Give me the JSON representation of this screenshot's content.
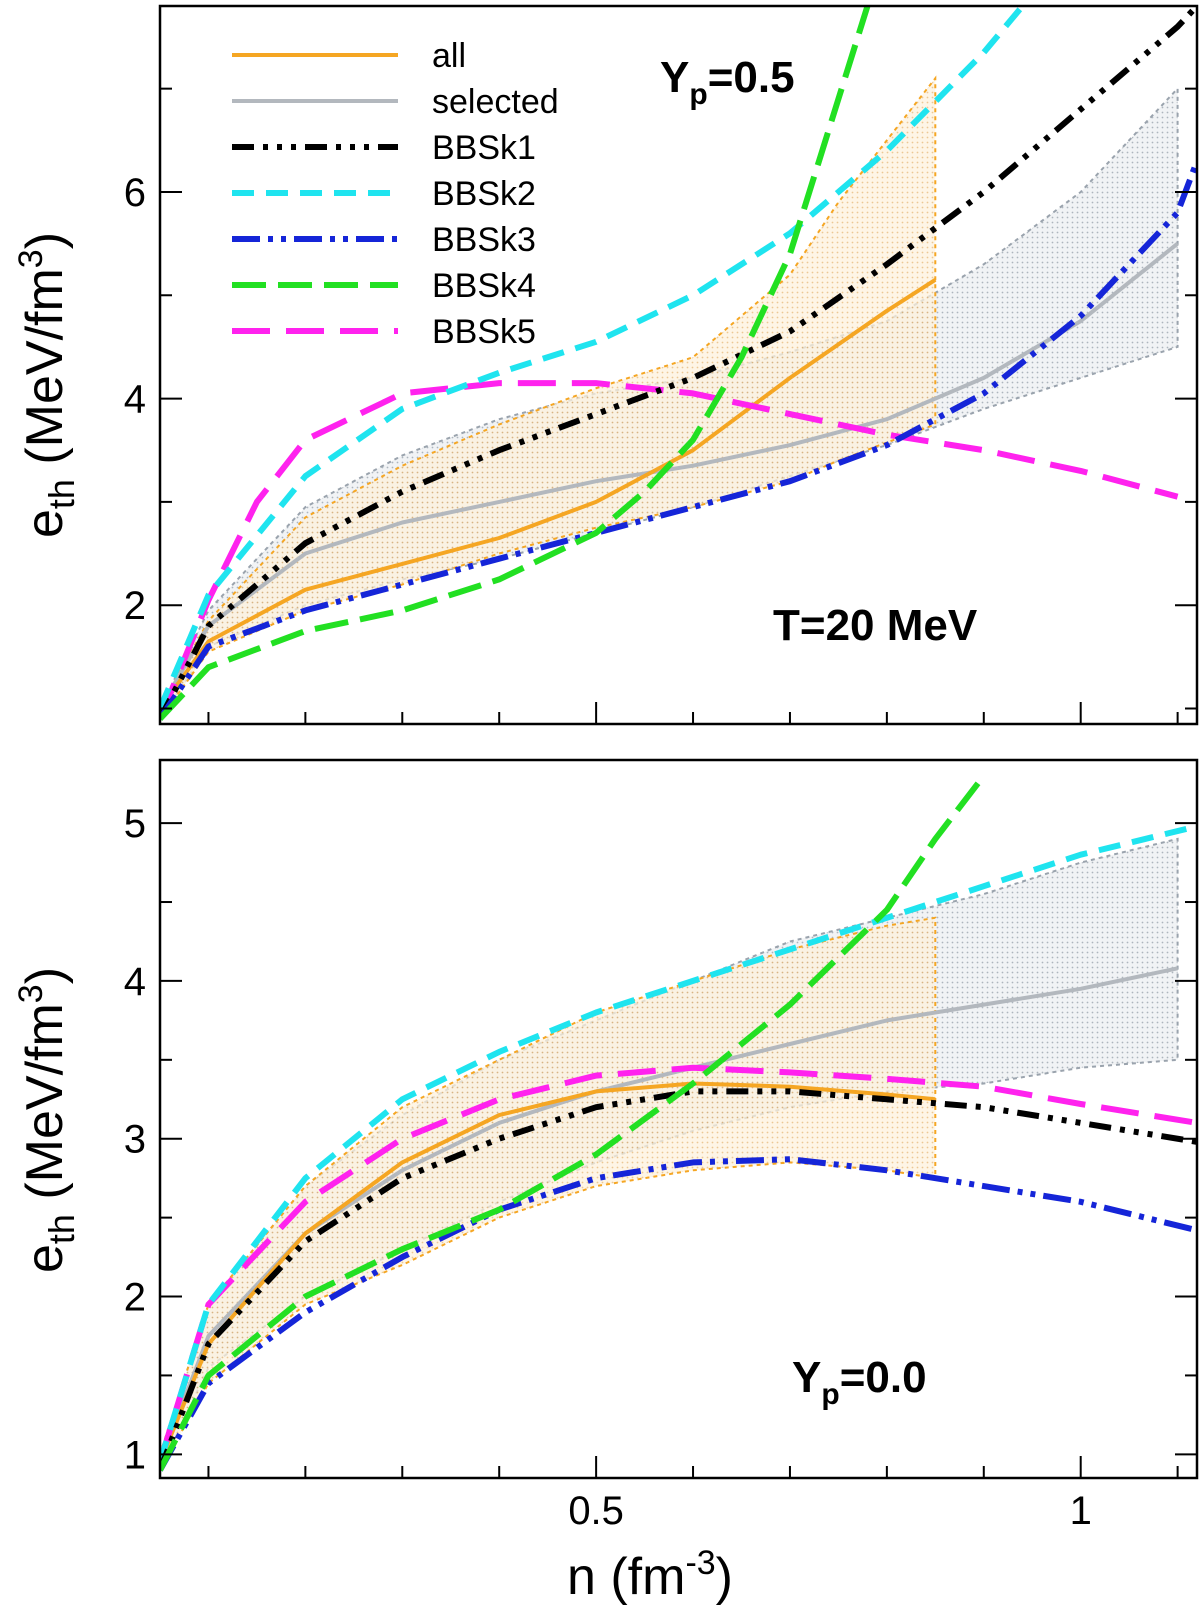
{
  "chart_data": [
    {
      "type": "line",
      "title": "",
      "xlabel": "n (fm^-3)",
      "ylabel": "e_th (MeV/fm^3)",
      "xlim": [
        0.05,
        1.12
      ],
      "ylim": [
        0.85,
        7.8
      ],
      "x_ticks": [
        0.5,
        1
      ],
      "y_ticks": [
        2,
        4,
        6
      ],
      "y_tick_labels": [
        "2",
        "4",
        "6"
      ],
      "x_tick_labels": [
        "",
        ""
      ],
      "annotations": {
        "yp": {
          "main": "Y",
          "sub": "p",
          "rest": "=0.5"
        },
        "temp": "T=20 MeV"
      },
      "legend": [
        "all",
        "selected",
        "BBSk1",
        "BBSk2",
        "BBSk3",
        "BBSk4",
        "BBSk5"
      ],
      "bands": [
        {
          "name": "all",
          "x": [
            0.05,
            0.1,
            0.2,
            0.3,
            0.4,
            0.5,
            0.6,
            0.7,
            0.75,
            0.85
          ],
          "upper": [
            1.0,
            1.85,
            2.85,
            3.35,
            3.75,
            4.1,
            4.4,
            5.2,
            5.9,
            7.1
          ],
          "lower": [
            0.9,
            1.55,
            1.95,
            2.2,
            2.5,
            2.75,
            2.95,
            3.2,
            3.4,
            3.75
          ]
        },
        {
          "name": "selected",
          "x": [
            0.05,
            0.1,
            0.2,
            0.3,
            0.4,
            0.5,
            0.6,
            0.7,
            0.8,
            0.9,
            1.0,
            1.1
          ],
          "upper": [
            1.0,
            1.95,
            2.95,
            3.45,
            3.8,
            4.05,
            4.2,
            4.45,
            4.75,
            5.3,
            6.0,
            7.0
          ],
          "lower": [
            0.9,
            1.6,
            2.0,
            2.25,
            2.45,
            2.7,
            2.95,
            3.25,
            3.55,
            3.9,
            4.2,
            4.5
          ]
        }
      ],
      "series": [
        {
          "name": "all",
          "x": [
            0.05,
            0.1,
            0.2,
            0.3,
            0.4,
            0.5,
            0.6,
            0.7,
            0.8,
            0.85
          ],
          "values": [
            1.0,
            1.65,
            2.15,
            2.4,
            2.65,
            3.0,
            3.5,
            4.2,
            4.85,
            5.15
          ]
        },
        {
          "name": "selected",
          "x": [
            0.05,
            0.1,
            0.2,
            0.3,
            0.4,
            0.5,
            0.6,
            0.7,
            0.8,
            0.9,
            1.0,
            1.1
          ],
          "values": [
            1.0,
            1.8,
            2.5,
            2.8,
            3.0,
            3.2,
            3.35,
            3.55,
            3.8,
            4.2,
            4.75,
            5.5
          ]
        },
        {
          "name": "BBSk1",
          "x": [
            0.05,
            0.1,
            0.2,
            0.3,
            0.4,
            0.5,
            0.6,
            0.7,
            0.8,
            0.9,
            1.0,
            1.1,
            1.12
          ],
          "values": [
            0.9,
            1.8,
            2.6,
            3.1,
            3.5,
            3.85,
            4.2,
            4.65,
            5.3,
            6.0,
            6.8,
            7.6,
            7.8
          ]
        },
        {
          "name": "BBSk2",
          "x": [
            0.05,
            0.1,
            0.2,
            0.3,
            0.4,
            0.5,
            0.6,
            0.7,
            0.8,
            0.9,
            0.94
          ],
          "values": [
            1.0,
            2.1,
            3.25,
            3.9,
            4.25,
            4.55,
            5.0,
            5.6,
            6.4,
            7.35,
            7.8
          ]
        },
        {
          "name": "BBSk3",
          "x": [
            0.05,
            0.1,
            0.2,
            0.3,
            0.4,
            0.5,
            0.6,
            0.7,
            0.8,
            0.9,
            1.0,
            1.1,
            1.12
          ],
          "values": [
            0.9,
            1.6,
            1.95,
            2.2,
            2.45,
            2.7,
            2.95,
            3.2,
            3.55,
            4.05,
            4.8,
            5.8,
            6.3
          ]
        },
        {
          "name": "BBSk4",
          "x": [
            0.05,
            0.1,
            0.2,
            0.3,
            0.4,
            0.5,
            0.55,
            0.6,
            0.65,
            0.7,
            0.75,
            0.78
          ],
          "values": [
            0.9,
            1.4,
            1.75,
            1.95,
            2.25,
            2.7,
            3.1,
            3.6,
            4.4,
            5.4,
            6.9,
            7.8
          ]
        },
        {
          "name": "BBSk5",
          "x": [
            0.05,
            0.1,
            0.15,
            0.2,
            0.3,
            0.4,
            0.5,
            0.6,
            0.7,
            0.8,
            0.9,
            1.0,
            1.1
          ],
          "values": [
            0.9,
            2.05,
            3.0,
            3.6,
            4.05,
            4.15,
            4.15,
            4.05,
            3.85,
            3.65,
            3.5,
            3.3,
            3.05
          ]
        }
      ]
    },
    {
      "type": "line",
      "title": "",
      "xlabel": "n (fm^-3)",
      "ylabel": "e_th (MeV/fm^3)",
      "xlim": [
        0.05,
        1.12
      ],
      "ylim": [
        0.85,
        5.4
      ],
      "x_ticks": [
        0.5,
        1
      ],
      "x_tick_labels": [
        "0.5",
        "1"
      ],
      "y_ticks": [
        1,
        2,
        3,
        4,
        5
      ],
      "y_tick_labels": [
        "1",
        "2",
        "3",
        "4",
        "5"
      ],
      "annotations": {
        "yp": {
          "main": "Y",
          "sub": "p",
          "rest": "=0.0"
        }
      },
      "bands": [
        {
          "name": "all",
          "x": [
            0.05,
            0.1,
            0.2,
            0.3,
            0.4,
            0.5,
            0.6,
            0.7,
            0.8,
            0.85
          ],
          "upper": [
            1.0,
            1.95,
            2.7,
            3.2,
            3.5,
            3.8,
            4.0,
            4.2,
            4.35,
            4.4
          ],
          "lower": [
            0.9,
            1.45,
            1.95,
            2.2,
            2.5,
            2.7,
            2.8,
            2.85,
            2.8,
            2.75
          ]
        },
        {
          "name": "selected",
          "x": [
            0.05,
            0.1,
            0.2,
            0.3,
            0.4,
            0.5,
            0.6,
            0.7,
            0.8,
            0.9,
            1.0,
            1.1
          ],
          "upper": [
            1.0,
            1.95,
            2.7,
            3.15,
            3.5,
            3.75,
            4.0,
            4.25,
            4.4,
            4.55,
            4.75,
            4.9
          ],
          "lower": [
            0.9,
            1.55,
            2.0,
            2.3,
            2.6,
            2.85,
            3.05,
            3.2,
            3.3,
            3.35,
            3.45,
            3.5
          ]
        }
      ],
      "series": [
        {
          "name": "all",
          "x": [
            0.05,
            0.1,
            0.2,
            0.3,
            0.4,
            0.5,
            0.6,
            0.7,
            0.8,
            0.85
          ],
          "values": [
            0.95,
            1.7,
            2.4,
            2.85,
            3.15,
            3.3,
            3.35,
            3.33,
            3.28,
            3.25
          ]
        },
        {
          "name": "selected",
          "x": [
            0.05,
            0.1,
            0.2,
            0.3,
            0.4,
            0.5,
            0.6,
            0.7,
            0.8,
            0.9,
            1.0,
            1.1
          ],
          "values": [
            0.95,
            1.75,
            2.4,
            2.8,
            3.1,
            3.3,
            3.45,
            3.6,
            3.75,
            3.85,
            3.95,
            4.08
          ]
        },
        {
          "name": "BBSk1",
          "x": [
            0.05,
            0.1,
            0.2,
            0.3,
            0.4,
            0.5,
            0.6,
            0.7,
            0.8,
            0.9,
            1.0,
            1.12
          ],
          "values": [
            0.9,
            1.7,
            2.35,
            2.75,
            3.0,
            3.2,
            3.3,
            3.3,
            3.25,
            3.2,
            3.1,
            2.98
          ]
        },
        {
          "name": "BBSk2",
          "x": [
            0.05,
            0.1,
            0.2,
            0.3,
            0.4,
            0.5,
            0.6,
            0.7,
            0.8,
            0.9,
            1.0,
            1.12
          ],
          "values": [
            0.95,
            1.95,
            2.75,
            3.25,
            3.55,
            3.8,
            4.0,
            4.2,
            4.4,
            4.6,
            4.8,
            4.98
          ]
        },
        {
          "name": "BBSk3",
          "x": [
            0.05,
            0.1,
            0.2,
            0.3,
            0.4,
            0.5,
            0.6,
            0.7,
            0.8,
            0.9,
            1.0,
            1.12
          ],
          "values": [
            0.9,
            1.45,
            1.9,
            2.25,
            2.55,
            2.75,
            2.85,
            2.87,
            2.8,
            2.7,
            2.6,
            2.42
          ]
        },
        {
          "name": "BBSk4",
          "x": [
            0.05,
            0.1,
            0.2,
            0.3,
            0.4,
            0.5,
            0.6,
            0.7,
            0.8,
            0.85,
            0.9
          ],
          "values": [
            0.9,
            1.5,
            2.0,
            2.3,
            2.55,
            2.9,
            3.35,
            3.85,
            4.45,
            4.9,
            5.3
          ]
        },
        {
          "name": "BBSk5",
          "x": [
            0.05,
            0.1,
            0.2,
            0.3,
            0.4,
            0.5,
            0.6,
            0.7,
            0.8,
            0.9,
            1.0,
            1.12
          ],
          "values": [
            0.95,
            1.95,
            2.6,
            3.0,
            3.25,
            3.4,
            3.45,
            3.42,
            3.38,
            3.33,
            3.22,
            3.1
          ]
        }
      ]
    }
  ],
  "styles": {
    "all": {
      "color": "#f5a623",
      "dash": "none"
    },
    "selected": {
      "color": "#b3b8be",
      "dash": "none"
    },
    "BBSk1": {
      "color": "#000000",
      "dash": "22 9 5 9 5 9 5 9"
    },
    "BBSk2": {
      "color": "#1fe4ef",
      "dash": "22 12"
    },
    "BBSk3": {
      "color": "#1525d8",
      "dash": "28 8 5 8 5 8"
    },
    "BBSk4": {
      "color": "#22e022",
      "dash": "34 12"
    },
    "BBSk5": {
      "color": "#ff22ee",
      "dash": "38 16"
    },
    "band_all": "#f5a623",
    "band_selected": "#9aa3ad"
  }
}
